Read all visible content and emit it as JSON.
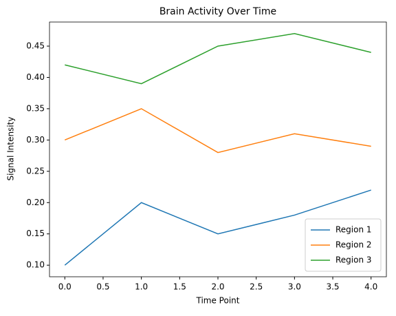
{
  "chart_data": {
    "type": "line",
    "title": "Brain Activity Over Time",
    "x_label": "Time Point",
    "y_label": "Signal Intensity",
    "x": [
      0,
      1,
      2,
      3,
      4
    ],
    "series": [
      {
        "name": "Region 1",
        "color": "#1f77b4",
        "values": [
          0.1,
          0.2,
          0.15,
          0.18,
          0.22
        ]
      },
      {
        "name": "Region 2",
        "color": "#ff7f0e",
        "values": [
          0.3,
          0.35,
          0.28,
          0.31,
          0.29
        ]
      },
      {
        "name": "Region 3",
        "color": "#2ca02c",
        "values": [
          0.42,
          0.39,
          0.45,
          0.47,
          0.44
        ]
      }
    ],
    "xlim": [
      -0.2,
      4.2
    ],
    "xticks": [
      {
        "value": 0,
        "label": "0.0"
      },
      {
        "value": 0.5,
        "label": "0.5"
      },
      {
        "value": 1,
        "label": "1.0"
      },
      {
        "value": 1.5,
        "label": "1.5"
      },
      {
        "value": 2,
        "label": "2.0"
      },
      {
        "value": 2.5,
        "label": "2.5"
      },
      {
        "value": 3,
        "label": "3.0"
      },
      {
        "value": 3.5,
        "label": "3.5"
      },
      {
        "value": 4,
        "label": "4.0"
      }
    ],
    "ylim": [
      0.0815,
      0.4885
    ],
    "yticks": [
      {
        "value": 0.1,
        "label": "0.10"
      },
      {
        "value": 0.15,
        "label": "0.15"
      },
      {
        "value": 0.2,
        "label": "0.20"
      },
      {
        "value": 0.25,
        "label": "0.25"
      },
      {
        "value": 0.3,
        "label": "0.30"
      },
      {
        "value": 0.35,
        "label": "0.35"
      },
      {
        "value": 0.4,
        "label": "0.40"
      },
      {
        "value": 0.45,
        "label": "0.45"
      }
    ],
    "grid": false,
    "legend": "lower right"
  }
}
